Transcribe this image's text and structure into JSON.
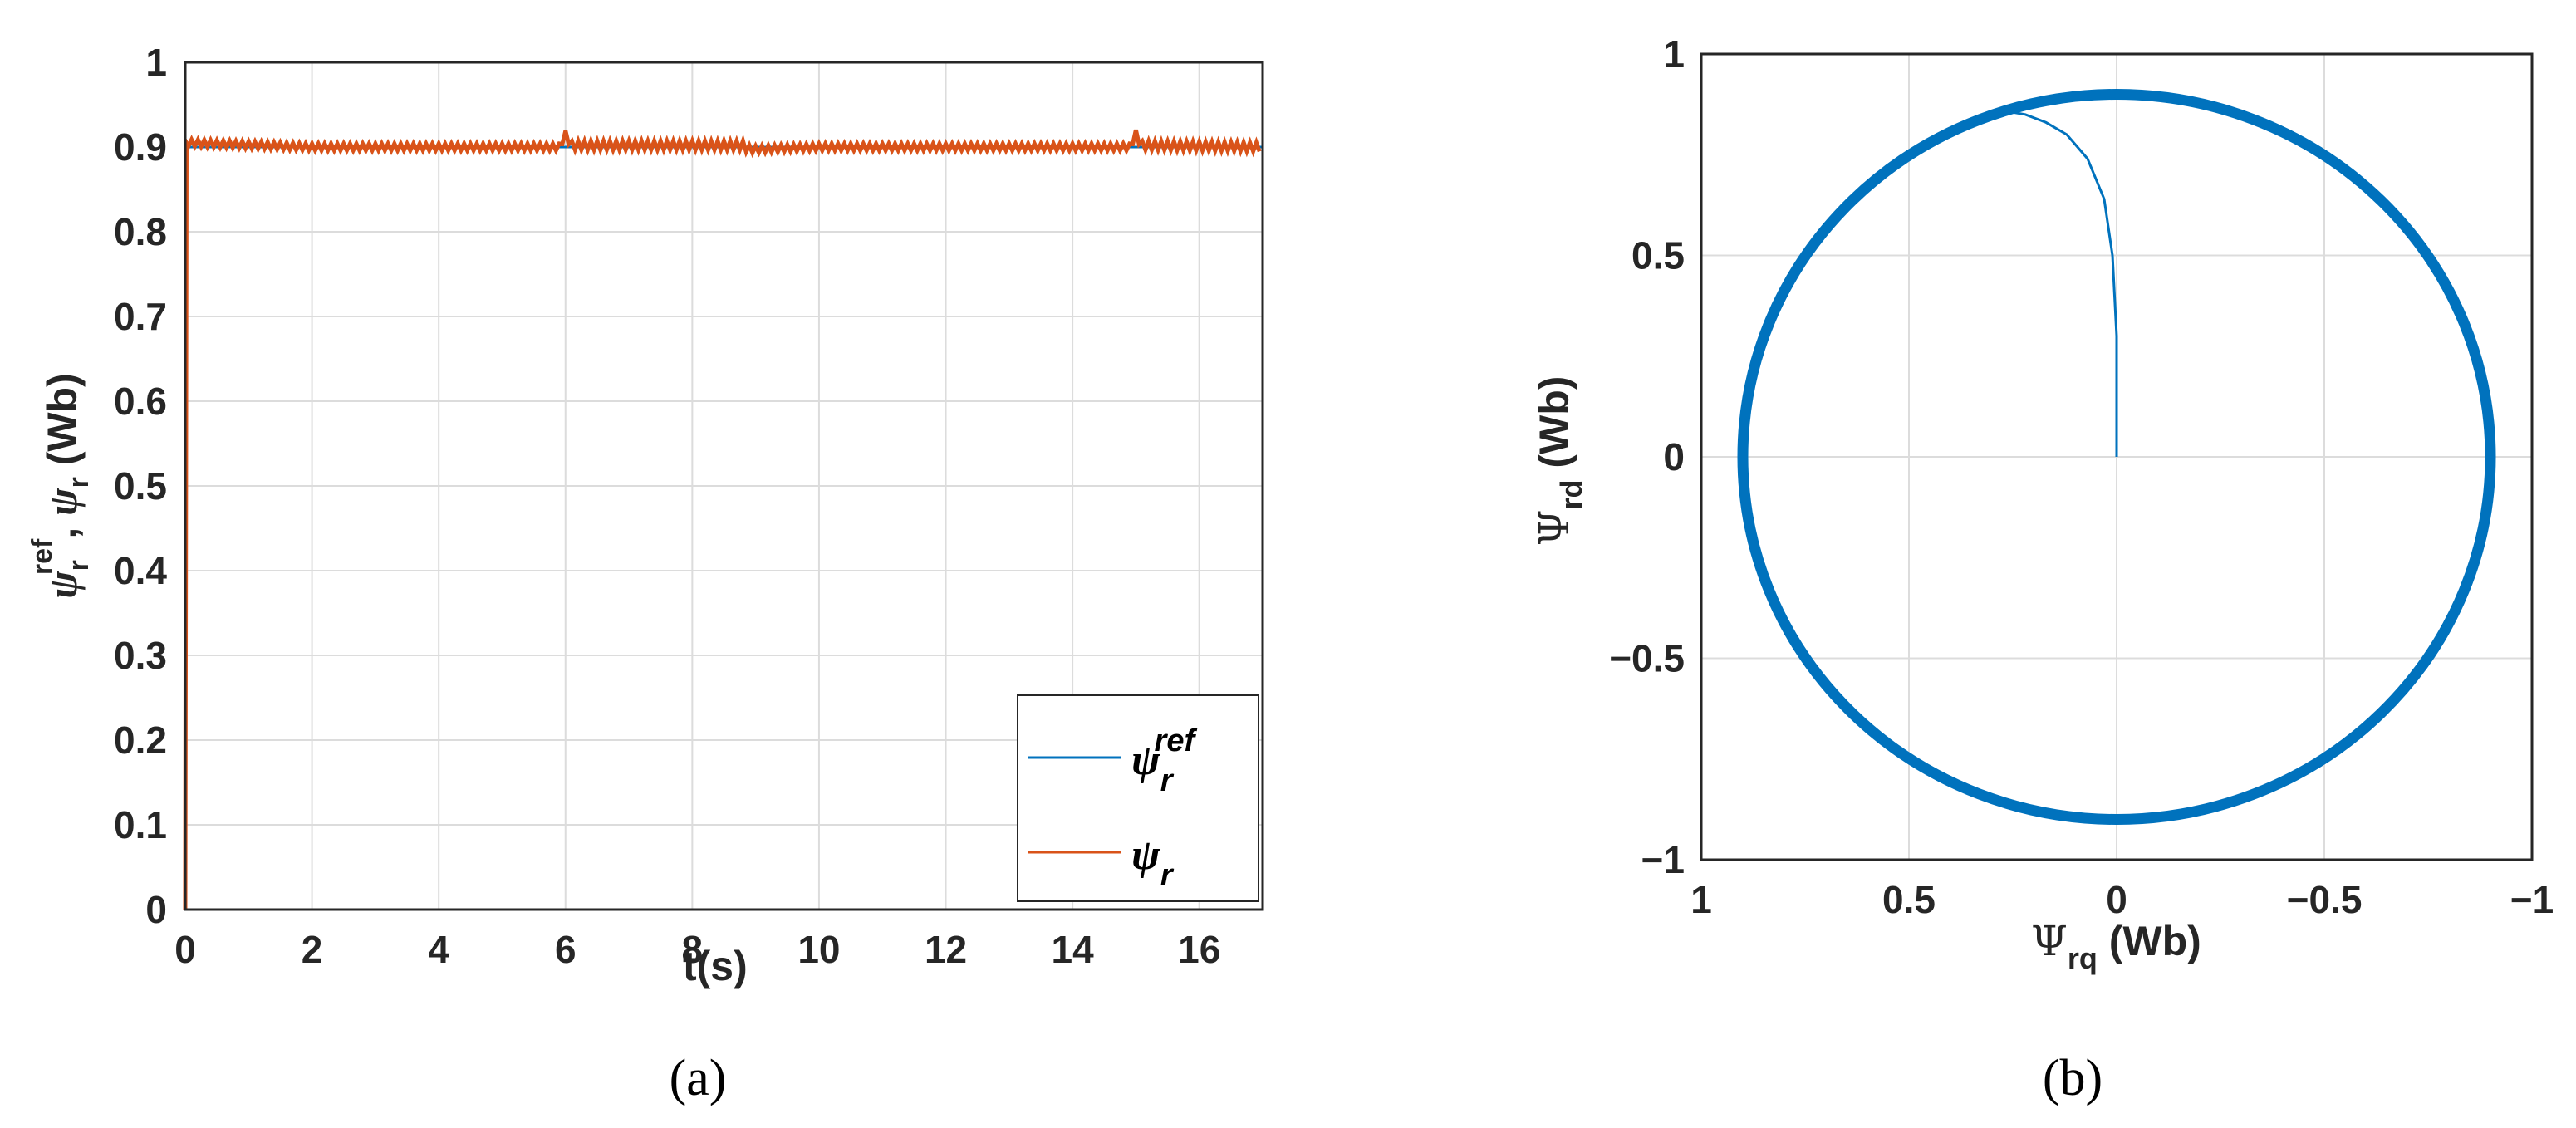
{
  "chart_data": [
    {
      "type": "line",
      "panel": "a",
      "caption": "(a)",
      "xlabel": "t(s)",
      "ylabel": {
        "psi": "ψ",
        "ref_sub": "r",
        "ref_sup": "ref",
        "sep": ", ",
        "psi2": "ψ",
        "sub2": "r",
        "unit": " (Wb)"
      },
      "xlim": [
        0,
        17
      ],
      "ylim": [
        0,
        1
      ],
      "xticks": [
        "0",
        "2",
        "4",
        "6",
        "8",
        "10",
        "12",
        "14",
        "16"
      ],
      "yticks": [
        "0",
        "0.1",
        "0.2",
        "0.3",
        "0.4",
        "0.5",
        "0.6",
        "0.7",
        "0.8",
        "0.9",
        "1"
      ],
      "grid": true,
      "legend_position": "bottom-right",
      "series": [
        {
          "name": "ψ_r^ref",
          "legend_main": "ψ",
          "legend_sub": "r",
          "legend_sup": "ref",
          "color": "#0072bd",
          "x": [
            0,
            0.02,
            17
          ],
          "y": [
            0,
            0.9,
            0.9
          ]
        },
        {
          "name": "ψ_r",
          "legend_main": "ψ",
          "legend_sub": "r",
          "legend_sup": "",
          "color": "#d95319",
          "x": [
            0,
            0.02,
            0.05,
            2,
            4,
            5.9,
            6.0,
            6.1,
            8,
            8.8,
            8.9,
            10,
            12,
            14,
            14.9,
            15.0,
            15.1,
            17
          ],
          "y": [
            0,
            0.905,
            0.905,
            0.9,
            0.9,
            0.9,
            0.915,
            0.902,
            0.902,
            0.902,
            0.897,
            0.9,
            0.9,
            0.9,
            0.9,
            0.915,
            0.902,
            0.9
          ],
          "oscillation_amplitude": 0.004
        }
      ]
    },
    {
      "type": "line",
      "panel": "b",
      "caption": "(b)",
      "xlabel": {
        "main": "Ψ",
        "sub": "rq",
        "unit": " (Wb)"
      },
      "ylabel": {
        "main": "Ψ",
        "sub": "rd",
        "unit": " (Wb)"
      },
      "xlim": [
        1,
        -1
      ],
      "ylim": [
        -1,
        1
      ],
      "x_axis_reversed": true,
      "xticks": [
        "1",
        "0.5",
        "0",
        "−0.5",
        "−1"
      ],
      "yticks": [
        "1",
        "0.5",
        "0",
        "−0.5",
        "−1"
      ],
      "grid": true,
      "series": [
        {
          "color": "#0072bd",
          "shape": "circle",
          "center": [
            0,
            0
          ],
          "radius": 0.9,
          "transient_x": [
            0,
            0,
            0.01,
            0.03,
            0.07,
            0.12,
            0.17,
            0.22,
            0.25,
            0.28
          ],
          "transient_y": [
            0,
            0.3,
            0.5,
            0.64,
            0.74,
            0.8,
            0.83,
            0.85,
            0.855,
            0.85
          ]
        }
      ]
    }
  ]
}
